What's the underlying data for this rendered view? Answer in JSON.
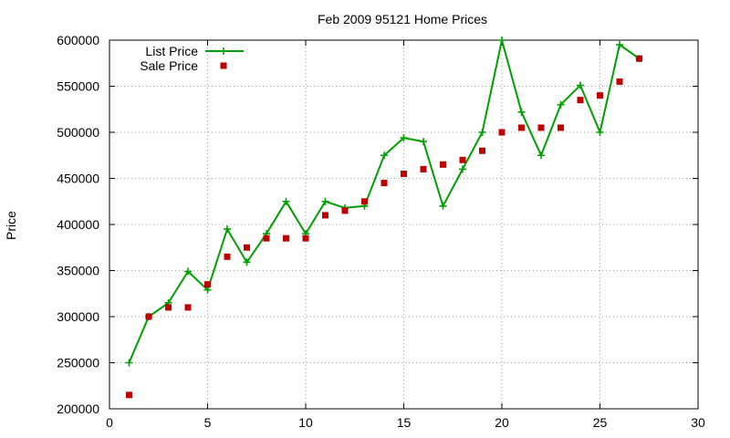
{
  "chart_data": {
    "type": "line",
    "title": "Feb 2009 95121 Home Prices",
    "xlabel": "",
    "ylabel": "Price",
    "xlim": [
      0,
      30
    ],
    "ylim": [
      200000,
      600000
    ],
    "xticks": [
      "0",
      "5",
      "10",
      "15",
      "20",
      "25",
      "30"
    ],
    "yticks": [
      "200000",
      "250000",
      "300000",
      "350000",
      "400000",
      "450000",
      "500000",
      "550000",
      "600000"
    ],
    "grid": true,
    "legend_position": "top-left",
    "x": [
      1,
      2,
      3,
      4,
      5,
      6,
      7,
      8,
      9,
      10,
      11,
      12,
      13,
      14,
      15,
      16,
      17,
      18,
      19,
      20,
      21,
      22,
      23,
      24,
      25,
      26,
      27
    ],
    "series": [
      {
        "name": "List Price",
        "style": "line-with-plus-markers",
        "color": "#00a000",
        "values": [
          250000,
          300000,
          315000,
          349000,
          329000,
          395000,
          359000,
          390000,
          425000,
          390000,
          425000,
          418000,
          420000,
          475000,
          494000,
          490000,
          420000,
          460000,
          500000,
          600000,
          522000,
          475000,
          530000,
          551000,
          500000,
          595000,
          580000
        ]
      },
      {
        "name": "Sale Price",
        "style": "square-markers",
        "color": "#c00000",
        "values": [
          215000,
          300000,
          310000,
          310000,
          335000,
          365000,
          375000,
          385000,
          385000,
          385000,
          410000,
          415000,
          425000,
          445000,
          455000,
          460000,
          465000,
          470000,
          480000,
          500000,
          505000,
          505000,
          505000,
          535000,
          540000,
          555000,
          580000
        ]
      }
    ]
  }
}
